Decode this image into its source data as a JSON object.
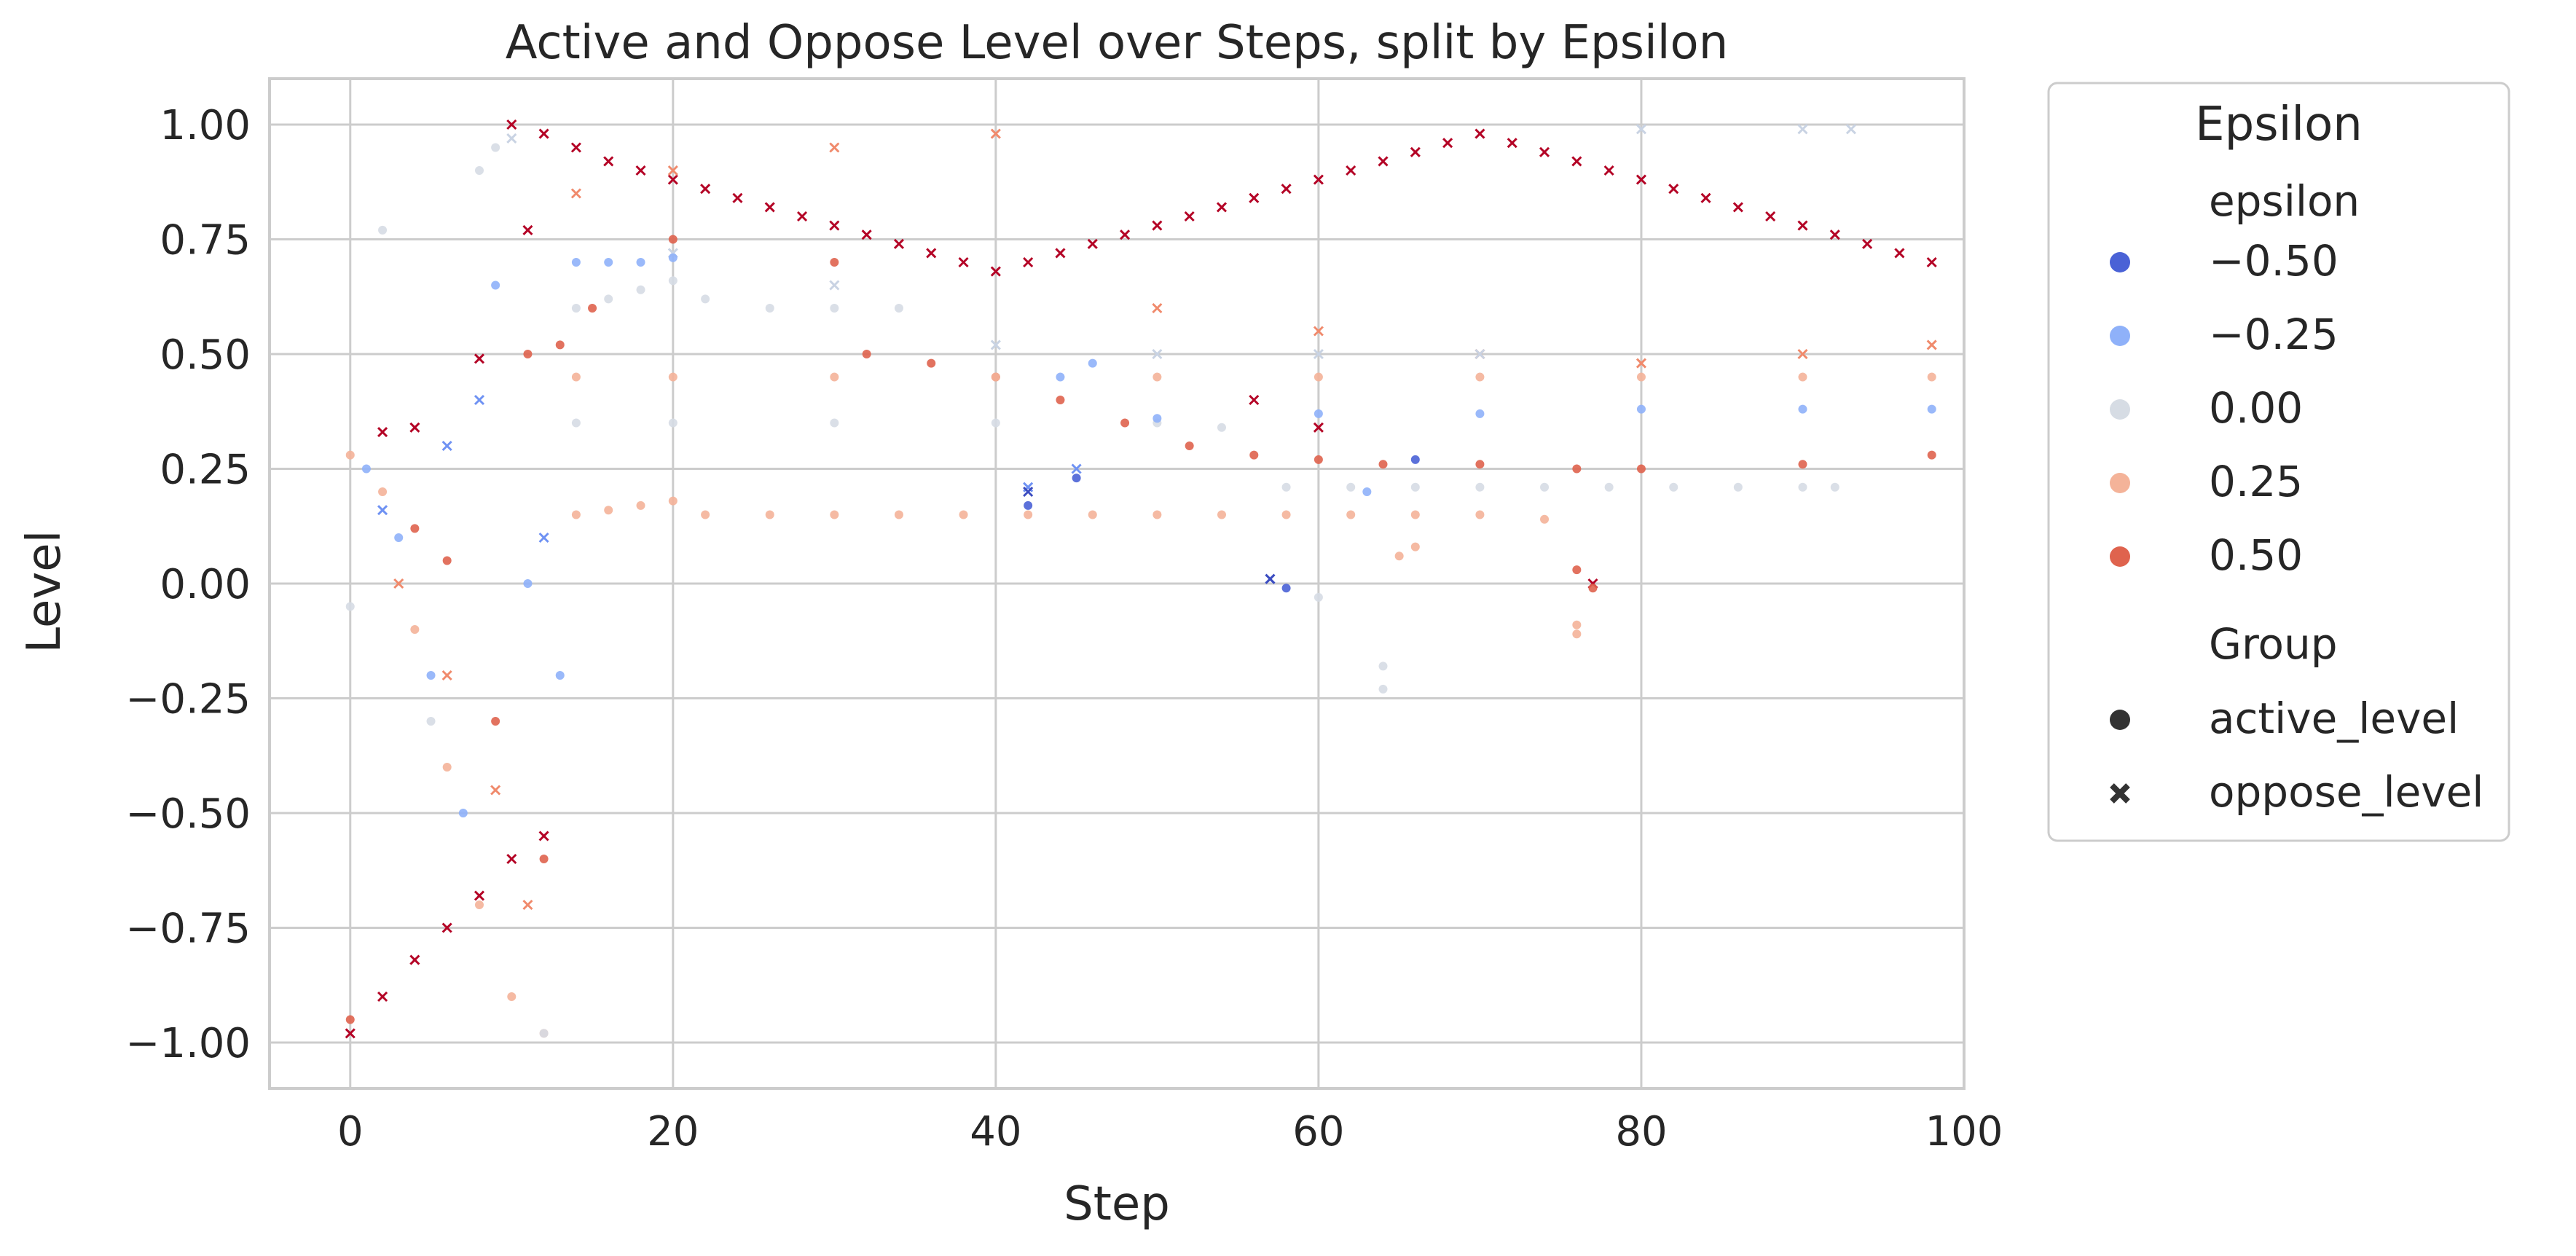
{
  "chart_data": {
    "type": "scatter",
    "title": "Active and Oppose Level over Steps, split by Epsilon",
    "xlabel": "Step",
    "ylabel": "Level",
    "xlim": [
      -5,
      100
    ],
    "ylim": [
      -1.1,
      1.1
    ],
    "xticks": [
      0,
      20,
      40,
      60,
      80,
      100
    ],
    "xtick_labels": [
      "0",
      "20",
      "40",
      "60",
      "80",
      "100"
    ],
    "yticks": [
      1.0,
      0.75,
      0.5,
      0.25,
      0.0,
      -0.25,
      -0.5,
      -0.75,
      -1.0
    ],
    "ytick_labels": [
      "1.00",
      "0.75",
      "0.50",
      "0.25",
      "0.00",
      "−0.25",
      "−0.50",
      "−0.75",
      "−1.00"
    ],
    "grid": true,
    "legend": {
      "title": "Epsilon",
      "placement": "outside-right",
      "hue_title": "epsilon",
      "hue_entries": [
        {
          "label": "−0.50",
          "color": "#4a62d6"
        },
        {
          "label": "−0.25",
          "color": "#8fb1f9"
        },
        {
          "label": "0.00",
          "color": "#d6dce4"
        },
        {
          "label": "0.25",
          "color": "#f4b399"
        },
        {
          "label": "0.50",
          "color": "#df634e"
        }
      ],
      "style_title": "Group",
      "style_entries": [
        {
          "label": "active_level",
          "marker": "circle"
        },
        {
          "label": "oppose_level",
          "marker": "x"
        }
      ]
    },
    "series": [
      {
        "epsilon": 0.5,
        "group": "oppose_level",
        "color": "#b40426",
        "points": [
          [
            10,
            1.0
          ],
          [
            12,
            0.98
          ],
          [
            14,
            0.95
          ],
          [
            16,
            0.92
          ],
          [
            18,
            0.9
          ],
          [
            20,
            0.88
          ],
          [
            22,
            0.86
          ],
          [
            24,
            0.84
          ],
          [
            26,
            0.82
          ],
          [
            28,
            0.8
          ],
          [
            30,
            0.78
          ],
          [
            32,
            0.76
          ],
          [
            34,
            0.74
          ],
          [
            36,
            0.72
          ],
          [
            38,
            0.7
          ],
          [
            40,
            0.68
          ],
          [
            42,
            0.7
          ],
          [
            44,
            0.72
          ],
          [
            46,
            0.74
          ],
          [
            48,
            0.76
          ],
          [
            50,
            0.78
          ],
          [
            52,
            0.8
          ],
          [
            54,
            0.82
          ],
          [
            56,
            0.84
          ],
          [
            58,
            0.86
          ],
          [
            60,
            0.88
          ],
          [
            62,
            0.9
          ],
          [
            64,
            0.92
          ],
          [
            66,
            0.94
          ],
          [
            68,
            0.96
          ],
          [
            70,
            0.98
          ],
          [
            72,
            0.96
          ],
          [
            74,
            0.94
          ],
          [
            76,
            0.92
          ],
          [
            78,
            0.9
          ],
          [
            80,
            0.88
          ],
          [
            82,
            0.86
          ],
          [
            84,
            0.84
          ],
          [
            86,
            0.82
          ],
          [
            88,
            0.8
          ],
          [
            90,
            0.78
          ],
          [
            92,
            0.76
          ],
          [
            94,
            0.74
          ],
          [
            96,
            0.72
          ],
          [
            98,
            0.7
          ],
          [
            2,
            0.33
          ],
          [
            4,
            0.34
          ],
          [
            8,
            0.49
          ],
          [
            11,
            0.77
          ],
          [
            0,
            -0.98
          ],
          [
            2,
            -0.9
          ],
          [
            4,
            -0.82
          ],
          [
            6,
            -0.75
          ],
          [
            8,
            -0.68
          ],
          [
            10,
            -0.6
          ],
          [
            12,
            -0.55
          ],
          [
            56,
            0.4
          ],
          [
            60,
            0.34
          ],
          [
            77,
            0.0
          ]
        ]
      },
      {
        "epsilon": 0.5,
        "group": "active_level",
        "color": "#df634e",
        "points": [
          [
            11,
            0.5
          ],
          [
            13,
            0.52
          ],
          [
            15,
            0.6
          ],
          [
            20,
            0.75
          ],
          [
            30,
            0.7
          ],
          [
            32,
            0.5
          ],
          [
            36,
            0.48
          ],
          [
            40,
            0.45
          ],
          [
            44,
            0.4
          ],
          [
            48,
            0.35
          ],
          [
            52,
            0.3
          ],
          [
            56,
            0.28
          ],
          [
            60,
            0.27
          ],
          [
            64,
            0.26
          ],
          [
            70,
            0.26
          ],
          [
            76,
            0.25
          ],
          [
            80,
            0.25
          ],
          [
            90,
            0.26
          ],
          [
            98,
            0.28
          ],
          [
            4,
            0.12
          ],
          [
            6,
            0.05
          ],
          [
            9,
            -0.3
          ],
          [
            12,
            -0.6
          ],
          [
            0,
            -0.95
          ],
          [
            76,
            0.03
          ],
          [
            77,
            -0.01
          ]
        ]
      },
      {
        "epsilon": 0.25,
        "group": "active_level",
        "color": "#f4b399",
        "points": [
          [
            14,
            0.15
          ],
          [
            16,
            0.16
          ],
          [
            18,
            0.17
          ],
          [
            20,
            0.18
          ],
          [
            22,
            0.15
          ],
          [
            26,
            0.15
          ],
          [
            30,
            0.15
          ],
          [
            34,
            0.15
          ],
          [
            38,
            0.15
          ],
          [
            42,
            0.15
          ],
          [
            46,
            0.15
          ],
          [
            50,
            0.15
          ],
          [
            54,
            0.15
          ],
          [
            58,
            0.15
          ],
          [
            62,
            0.15
          ],
          [
            66,
            0.15
          ],
          [
            70,
            0.15
          ],
          [
            74,
            0.14
          ],
          [
            14,
            0.45
          ],
          [
            20,
            0.45
          ],
          [
            30,
            0.45
          ],
          [
            40,
            0.45
          ],
          [
            50,
            0.45
          ],
          [
            60,
            0.45
          ],
          [
            70,
            0.45
          ],
          [
            80,
            0.45
          ],
          [
            90,
            0.45
          ],
          [
            98,
            0.45
          ],
          [
            0,
            0.28
          ],
          [
            2,
            0.2
          ],
          [
            4,
            -0.1
          ],
          [
            6,
            -0.4
          ],
          [
            8,
            -0.7
          ],
          [
            10,
            -0.9
          ],
          [
            12,
            -0.98
          ],
          [
            65,
            0.06
          ],
          [
            66,
            0.08
          ],
          [
            76,
            -0.09
          ],
          [
            76,
            -0.11
          ]
        ]
      },
      {
        "epsilon": 0.25,
        "group": "oppose_level",
        "color": "#f08a6c",
        "points": [
          [
            14,
            0.85
          ],
          [
            20,
            0.9
          ],
          [
            30,
            0.95
          ],
          [
            40,
            0.98
          ],
          [
            50,
            0.6
          ],
          [
            60,
            0.55
          ],
          [
            70,
            0.5
          ],
          [
            80,
            0.48
          ],
          [
            90,
            0.5
          ],
          [
            98,
            0.52
          ],
          [
            3,
            0.0
          ],
          [
            6,
            -0.2
          ],
          [
            9,
            -0.45
          ],
          [
            11,
            -0.7
          ]
        ]
      },
      {
        "epsilon": 0.0,
        "group": "active_level",
        "color": "#d6dce4",
        "points": [
          [
            14,
            0.6
          ],
          [
            16,
            0.62
          ],
          [
            18,
            0.64
          ],
          [
            20,
            0.66
          ],
          [
            22,
            0.62
          ],
          [
            26,
            0.6
          ],
          [
            30,
            0.6
          ],
          [
            34,
            0.6
          ],
          [
            14,
            0.35
          ],
          [
            20,
            0.35
          ],
          [
            30,
            0.35
          ],
          [
            40,
            0.35
          ],
          [
            50,
            0.35
          ],
          [
            54,
            0.34
          ],
          [
            58,
            0.21
          ],
          [
            62,
            0.21
          ],
          [
            66,
            0.21
          ],
          [
            70,
            0.21
          ],
          [
            74,
            0.21
          ],
          [
            78,
            0.21
          ],
          [
            82,
            0.21
          ],
          [
            86,
            0.21
          ],
          [
            90,
            0.21
          ],
          [
            92,
            0.21
          ],
          [
            2,
            0.77
          ],
          [
            8,
            0.9
          ],
          [
            9,
            0.95
          ],
          [
            64,
            -0.18
          ],
          [
            64,
            -0.23
          ],
          [
            60,
            -0.03
          ],
          [
            0,
            -0.05
          ],
          [
            5,
            -0.3
          ],
          [
            12,
            -0.98
          ]
        ]
      },
      {
        "epsilon": 0.0,
        "group": "oppose_level",
        "color": "#c9d3e3",
        "points": [
          [
            10,
            0.97
          ],
          [
            20,
            0.72
          ],
          [
            30,
            0.65
          ],
          [
            40,
            0.52
          ],
          [
            50,
            0.5
          ],
          [
            60,
            0.5
          ],
          [
            70,
            0.5
          ],
          [
            80,
            0.99
          ],
          [
            90,
            0.99
          ],
          [
            93,
            0.99
          ]
        ]
      },
      {
        "epsilon": -0.25,
        "group": "active_level",
        "color": "#8fb1f9",
        "points": [
          [
            14,
            0.7
          ],
          [
            16,
            0.7
          ],
          [
            18,
            0.7
          ],
          [
            20,
            0.71
          ],
          [
            1,
            0.25
          ],
          [
            3,
            0.1
          ],
          [
            5,
            -0.2
          ],
          [
            7,
            -0.5
          ],
          [
            9,
            0.65
          ],
          [
            11,
            0.0
          ],
          [
            13,
            -0.2
          ],
          [
            44,
            0.45
          ],
          [
            46,
            0.48
          ],
          [
            50,
            0.36
          ],
          [
            60,
            0.37
          ],
          [
            70,
            0.37
          ],
          [
            80,
            0.38
          ],
          [
            90,
            0.38
          ],
          [
            98,
            0.38
          ],
          [
            63,
            0.2
          ]
        ]
      },
      {
        "epsilon": -0.25,
        "group": "oppose_level",
        "color": "#6f92f3",
        "points": [
          [
            2,
            0.16
          ],
          [
            6,
            0.3
          ],
          [
            8,
            0.4
          ],
          [
            12,
            0.1
          ],
          [
            42,
            0.21
          ],
          [
            45,
            0.25
          ],
          [
            57,
            0.01
          ]
        ]
      },
      {
        "epsilon": -0.5,
        "group": "active_level",
        "color": "#4a62d6",
        "points": [
          [
            42,
            0.17
          ],
          [
            45,
            0.23
          ],
          [
            58,
            -0.01
          ],
          [
            66,
            0.27
          ]
        ]
      },
      {
        "epsilon": -0.5,
        "group": "oppose_level",
        "color": "#3b4cc0",
        "points": [
          [
            42,
            0.2
          ],
          [
            57,
            0.01
          ]
        ]
      }
    ]
  }
}
